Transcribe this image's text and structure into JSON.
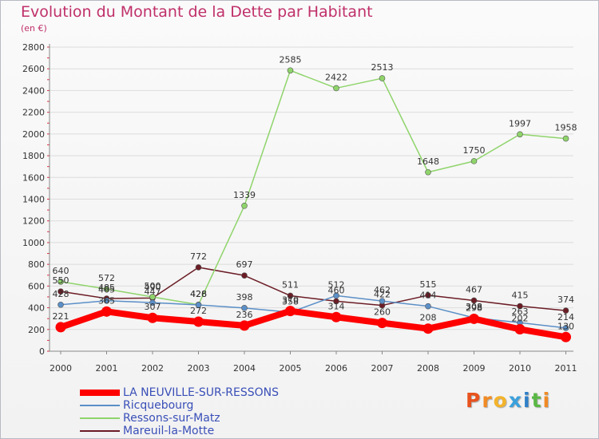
{
  "title": "Evolution du Montant de la Dette par Habitant",
  "subtitle": "(en €)",
  "logo": {
    "text": "Proxiti",
    "letter_colors": [
      "#e8521e",
      "#f08a24",
      "#f4b32a",
      "#3aa0dc",
      "#2f7fc7",
      "#5ab845",
      "#f08a24"
    ]
  },
  "chart_data": {
    "type": "line",
    "x": [
      "2000",
      "2001",
      "2002",
      "2003",
      "2004",
      "2005",
      "2006",
      "2007",
      "2008",
      "2009",
      "2010",
      "2011"
    ],
    "ylim": [
      0,
      2800
    ],
    "yticks": [
      "0",
      "200",
      "400",
      "600",
      "800",
      "1000",
      "1200",
      "1400",
      "1600",
      "1800",
      "2000",
      "2200",
      "2400",
      "2600",
      "2800"
    ],
    "grid": "horizontal",
    "legend_position": "bottom-left",
    "series": [
      {
        "name": "Mareuil-la-Motte",
        "color": "#6b1c25",
        "values": [
          550,
          485,
          490,
          772,
          697,
          511,
          460,
          422,
          515,
          467,
          415,
          374
        ],
        "labels": [
          "550",
          "485",
          "490",
          "772",
          "697",
          "511",
          "460",
          "422",
          "515",
          "467",
          "415",
          "374"
        ]
      },
      {
        "name": "Ressons-sur-Matz",
        "color": "#8fd46b",
        "values": [
          640,
          572,
          500,
          428,
          1339,
          2585,
          2422,
          2513,
          1648,
          1750,
          1997,
          1958
        ],
        "labels": [
          "640",
          "572",
          "500",
          "428",
          "1339",
          "2585",
          "2422",
          "2513",
          "1648",
          "1750",
          "1997",
          "1958"
        ]
      },
      {
        "name": "Ricquebourg",
        "color": "#5b8fc7",
        "values": [
          428,
          465,
          447,
          426,
          398,
          358,
          512,
          462,
          414,
          308,
          263,
          214
        ],
        "labels": [
          "428",
          "465",
          "447",
          "426",
          "398",
          "358",
          "512",
          "462",
          "414",
          "308",
          "263",
          "214"
        ]
      },
      {
        "name": "LA NEUVILLE-SUR-RESSONS",
        "color": "#ff0000",
        "values": [
          221,
          365,
          307,
          272,
          236,
          370,
          314,
          260,
          208,
          298,
          202,
          130
        ],
        "labels": [
          "221",
          "365",
          "307",
          "272",
          "236",
          "370",
          "314",
          "260",
          "208",
          "298",
          "202",
          "130"
        ]
      }
    ],
    "legend": [
      {
        "name": "LA NEUVILLE-SUR-RESSONS",
        "color": "#ff0000",
        "thick": true
      },
      {
        "name": "Ricquebourg",
        "color": "#5b8fc7",
        "thick": false
      },
      {
        "name": "Ressons-sur-Matz",
        "color": "#8fd46b",
        "thick": false
      },
      {
        "name": "Mareuil-la-Motte",
        "color": "#6b1c25",
        "thick": false
      }
    ]
  }
}
